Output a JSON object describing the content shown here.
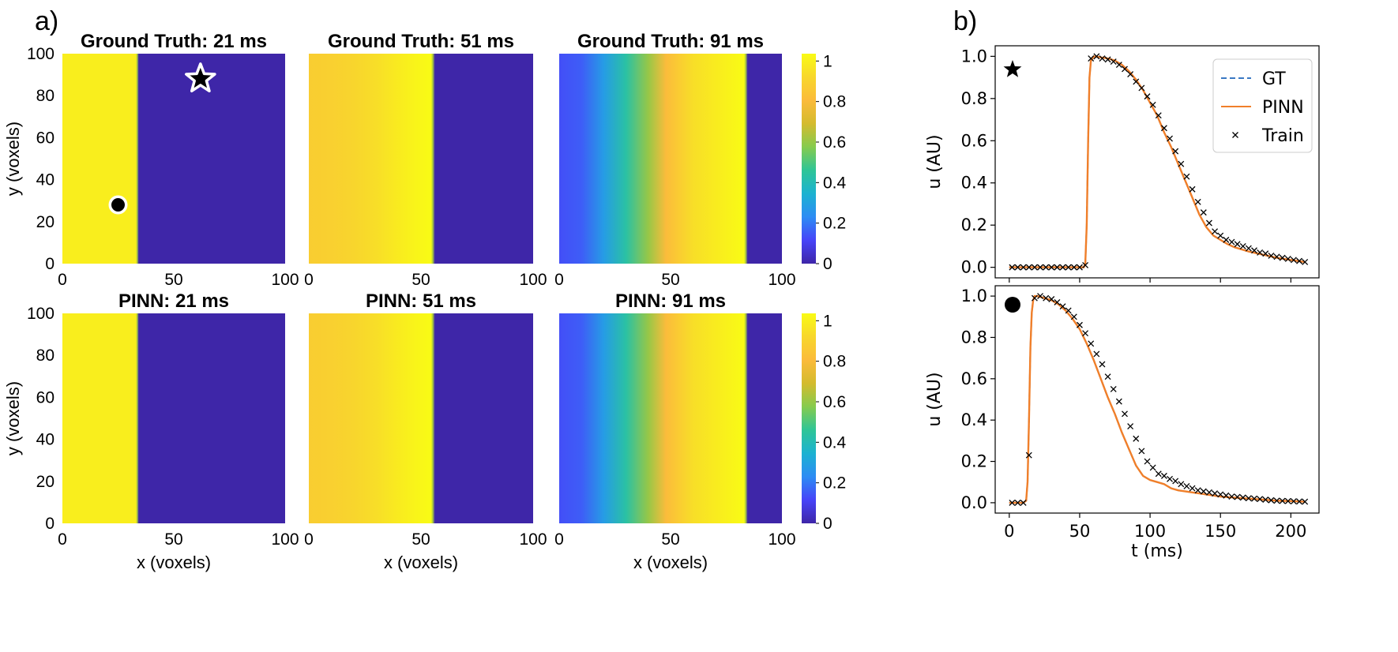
{
  "figure": {
    "panel_a": "a)",
    "panel_b": "b)"
  },
  "colormap": [
    "#3e26a8",
    "#4743f8",
    "#2d8cf4",
    "#1cb2d1",
    "#2ec597",
    "#86cb4e",
    "#d4bb2e",
    "#fbbb3b",
    "#f8d72c",
    "#f9fb15"
  ],
  "chart_data": [
    {
      "type": "heatmap",
      "name": "heatmap-gt-21",
      "title": "Ground Truth: 21 ms",
      "ylabel": "y (voxels)",
      "xlabel": "",
      "xlim": [
        0,
        100
      ],
      "ylim": [
        0,
        100
      ],
      "xticks": [
        "0",
        "50",
        "100"
      ],
      "yticks": [
        "0",
        "20",
        "40",
        "60",
        "80",
        "100"
      ],
      "profile_x": [
        0,
        33,
        33.6,
        34.3,
        100
      ],
      "profile_u": [
        0.96,
        0.96,
        0.6,
        0.0,
        0.0
      ],
      "markers": [
        {
          "symbol": "star",
          "x": 62,
          "y": 88
        },
        {
          "symbol": "circle",
          "x": 25,
          "y": 28
        }
      ]
    },
    {
      "type": "heatmap",
      "name": "heatmap-gt-51",
      "title": "Ground Truth: 51 ms",
      "xlabel": "",
      "xlim": [
        0,
        100
      ],
      "ylim": [
        0,
        100
      ],
      "xticks": [
        "0",
        "50",
        "100"
      ],
      "profile_x": [
        0,
        10,
        20,
        30,
        40,
        48,
        54.5,
        55.3,
        56.2,
        100
      ],
      "profile_u": [
        0.85,
        0.86,
        0.88,
        0.91,
        0.95,
        0.98,
        1.0,
        0.6,
        0.0,
        0.0
      ]
    },
    {
      "type": "heatmap",
      "name": "heatmap-gt-91",
      "title": "Ground Truth: 91 ms",
      "xlabel": "",
      "xlim": [
        0,
        100
      ],
      "ylim": [
        0,
        100
      ],
      "xticks": [
        "0",
        "50",
        "100"
      ],
      "profile_x": [
        0,
        10,
        20,
        30,
        40,
        48,
        60,
        70,
        83,
        83.8,
        84.6,
        100
      ],
      "profile_u": [
        0.13,
        0.15,
        0.27,
        0.42,
        0.58,
        0.78,
        0.91,
        0.95,
        1.0,
        0.6,
        0.0,
        0.0
      ]
    },
    {
      "type": "heatmap",
      "name": "heatmap-pinn-21",
      "title": "PINN: 21 ms",
      "ylabel": "y (voxels)",
      "xlabel": "x (voxels)",
      "xlim": [
        0,
        100
      ],
      "ylim": [
        0,
        100
      ],
      "xticks": [
        "0",
        "50",
        "100"
      ],
      "yticks": [
        "0",
        "20",
        "40",
        "60",
        "80",
        "100"
      ],
      "profile_x": [
        0,
        33,
        33.6,
        34.3,
        100
      ],
      "profile_u": [
        0.96,
        0.96,
        0.6,
        0.0,
        0.0
      ]
    },
    {
      "type": "heatmap",
      "name": "heatmap-pinn-51",
      "title": "PINN: 51 ms",
      "xlabel": "x (voxels)",
      "xlim": [
        0,
        100
      ],
      "ylim": [
        0,
        100
      ],
      "xticks": [
        "0",
        "50",
        "100"
      ],
      "profile_x": [
        0,
        10,
        20,
        30,
        40,
        48,
        54.5,
        55.3,
        56.2,
        100
      ],
      "profile_u": [
        0.85,
        0.86,
        0.88,
        0.91,
        0.95,
        0.98,
        1.0,
        0.6,
        0.0,
        0.0
      ]
    },
    {
      "type": "heatmap",
      "name": "heatmap-pinn-91",
      "title": "PINN: 91 ms",
      "xlabel": "x (voxels)",
      "xlim": [
        0,
        100
      ],
      "ylim": [
        0,
        100
      ],
      "xticks": [
        "0",
        "50",
        "100"
      ],
      "profile_x": [
        0,
        10,
        20,
        30,
        40,
        48,
        60,
        70,
        83,
        83.8,
        84.6,
        100
      ],
      "profile_u": [
        0.13,
        0.15,
        0.27,
        0.42,
        0.58,
        0.78,
        0.91,
        0.95,
        1.0,
        0.6,
        0.0,
        0.0
      ]
    },
    {
      "type": "colorbar",
      "name": "colorbar-top",
      "range": [
        0,
        1
      ],
      "ticks": [
        "0",
        "0.2",
        "0.4",
        "0.6",
        "0.8",
        "1"
      ]
    },
    {
      "type": "colorbar",
      "name": "colorbar-bottom",
      "range": [
        0,
        1
      ],
      "ticks": [
        "0",
        "0.2",
        "0.4",
        "0.6",
        "0.8",
        "1"
      ]
    },
    {
      "type": "line",
      "name": "trace-star",
      "marker_symbol": "star",
      "ylabel": "u (AU)",
      "xlabel": "",
      "xlim": [
        -10,
        220
      ],
      "ylim": [
        -0.05,
        1.05
      ],
      "xticks": [
        0,
        50,
        100,
        150,
        200
      ],
      "yticks": [
        "0.0",
        "0.2",
        "0.4",
        "0.6",
        "0.8",
        "1.0"
      ],
      "legend": [
        "GT",
        "PINN",
        "Train"
      ],
      "series": [
        {
          "name": "GT",
          "color": "#3a78c3",
          "style": "dashed",
          "x": [
            0,
            53,
            54,
            55,
            56,
            57,
            58,
            60,
            65,
            70,
            75,
            80,
            85,
            90,
            95,
            100,
            105,
            110,
            115,
            120,
            125,
            130,
            135,
            140,
            145,
            150,
            155,
            160,
            170,
            180,
            190,
            200,
            210
          ],
          "y": [
            0,
            0,
            0.02,
            0.2,
            0.6,
            0.9,
            0.98,
            1.0,
            0.995,
            0.99,
            0.98,
            0.96,
            0.93,
            0.89,
            0.84,
            0.78,
            0.72,
            0.64,
            0.57,
            0.49,
            0.41,
            0.33,
            0.25,
            0.19,
            0.15,
            0.13,
            0.11,
            0.095,
            0.075,
            0.06,
            0.045,
            0.035,
            0.025
          ]
        },
        {
          "name": "PINN",
          "color": "#f07f2a",
          "style": "solid",
          "x": [
            0,
            53,
            54,
            55,
            56,
            57,
            58,
            60,
            65,
            70,
            75,
            80,
            85,
            90,
            95,
            100,
            105,
            110,
            115,
            120,
            125,
            130,
            135,
            140,
            145,
            150,
            155,
            160,
            170,
            180,
            190,
            200,
            210
          ],
          "y": [
            0,
            0,
            0.02,
            0.2,
            0.6,
            0.9,
            0.98,
            1.0,
            0.995,
            0.99,
            0.98,
            0.96,
            0.93,
            0.89,
            0.84,
            0.78,
            0.72,
            0.64,
            0.57,
            0.49,
            0.41,
            0.33,
            0.25,
            0.19,
            0.15,
            0.13,
            0.11,
            0.095,
            0.075,
            0.06,
            0.045,
            0.035,
            0.025
          ]
        },
        {
          "name": "Train",
          "color": "#000000",
          "style": "x-marker",
          "x": [
            2,
            6,
            10,
            14,
            18,
            22,
            26,
            30,
            34,
            38,
            42,
            46,
            50,
            54,
            58,
            62,
            66,
            70,
            74,
            78,
            82,
            86,
            90,
            94,
            98,
            102,
            106,
            110,
            114,
            118,
            122,
            126,
            130,
            134,
            138,
            142,
            146,
            150,
            154,
            158,
            162,
            166,
            170,
            174,
            178,
            182,
            186,
            190,
            194,
            198,
            202,
            206,
            210
          ],
          "y": [
            0,
            0,
            0,
            0,
            0,
            0,
            0,
            0,
            0,
            0,
            0,
            0,
            0,
            0.01,
            0.99,
            1.0,
            0.99,
            0.985,
            0.975,
            0.96,
            0.94,
            0.915,
            0.88,
            0.85,
            0.81,
            0.77,
            0.72,
            0.66,
            0.61,
            0.55,
            0.49,
            0.43,
            0.37,
            0.31,
            0.26,
            0.21,
            0.17,
            0.15,
            0.13,
            0.12,
            0.11,
            0.1,
            0.09,
            0.08,
            0.07,
            0.065,
            0.055,
            0.05,
            0.045,
            0.04,
            0.035,
            0.03,
            0.025
          ]
        }
      ]
    },
    {
      "type": "line",
      "name": "trace-circle",
      "marker_symbol": "circle",
      "ylabel": "u (AU)",
      "xlabel": "t (ms)",
      "xlim": [
        -10,
        220
      ],
      "ylim": [
        -0.05,
        1.05
      ],
      "xticks": [
        0,
        50,
        100,
        150,
        200
      ],
      "yticks": [
        "0.0",
        "0.2",
        "0.4",
        "0.6",
        "0.8",
        "1.0"
      ],
      "series": [
        {
          "name": "GT",
          "color": "#3a78c3",
          "style": "dashed",
          "x": [
            0,
            10,
            12,
            13,
            14,
            15,
            16,
            17,
            18,
            20,
            25,
            30,
            35,
            40,
            45,
            50,
            55,
            60,
            65,
            70,
            75,
            80,
            85,
            90,
            95,
            100,
            105,
            110,
            115,
            120,
            130,
            140,
            150,
            160,
            170,
            180,
            190,
            200,
            210
          ],
          "y": [
            0,
            0,
            0.01,
            0.1,
            0.4,
            0.75,
            0.92,
            0.98,
            1.0,
            1.0,
            0.99,
            0.98,
            0.96,
            0.93,
            0.89,
            0.84,
            0.77,
            0.69,
            0.6,
            0.51,
            0.43,
            0.34,
            0.26,
            0.18,
            0.13,
            0.11,
            0.1,
            0.09,
            0.07,
            0.06,
            0.05,
            0.04,
            0.03,
            0.025,
            0.02,
            0.015,
            0.01,
            0.008,
            0.005
          ]
        },
        {
          "name": "PINN",
          "color": "#f07f2a",
          "style": "solid",
          "x": [
            0,
            10,
            12,
            13,
            14,
            15,
            16,
            17,
            18,
            20,
            25,
            30,
            35,
            40,
            45,
            50,
            55,
            60,
            65,
            70,
            75,
            80,
            85,
            90,
            95,
            100,
            105,
            110,
            115,
            120,
            130,
            140,
            150,
            160,
            170,
            180,
            190,
            200,
            210
          ],
          "y": [
            0,
            0,
            0.01,
            0.1,
            0.4,
            0.75,
            0.92,
            0.98,
            1.0,
            1.0,
            0.99,
            0.98,
            0.96,
            0.93,
            0.89,
            0.84,
            0.77,
            0.69,
            0.6,
            0.51,
            0.43,
            0.34,
            0.26,
            0.18,
            0.13,
            0.11,
            0.1,
            0.09,
            0.07,
            0.06,
            0.05,
            0.04,
            0.03,
            0.025,
            0.02,
            0.015,
            0.01,
            0.008,
            0.005
          ]
        },
        {
          "name": "Train",
          "color": "#000000",
          "style": "x-marker",
          "x": [
            2,
            6,
            10,
            14,
            18,
            22,
            26,
            30,
            34,
            38,
            42,
            46,
            50,
            54,
            58,
            62,
            66,
            70,
            74,
            78,
            82,
            86,
            90,
            94,
            98,
            102,
            106,
            110,
            114,
            118,
            122,
            126,
            130,
            134,
            138,
            142,
            146,
            150,
            154,
            158,
            162,
            166,
            170,
            174,
            178,
            182,
            186,
            190,
            194,
            198,
            202,
            206,
            210
          ],
          "y": [
            0,
            0,
            0,
            0.23,
            0.99,
            1.0,
            0.99,
            0.985,
            0.97,
            0.95,
            0.93,
            0.9,
            0.86,
            0.82,
            0.77,
            0.72,
            0.67,
            0.61,
            0.55,
            0.49,
            0.43,
            0.37,
            0.31,
            0.25,
            0.2,
            0.17,
            0.14,
            0.13,
            0.115,
            0.105,
            0.09,
            0.08,
            0.07,
            0.06,
            0.055,
            0.05,
            0.045,
            0.04,
            0.035,
            0.03,
            0.028,
            0.025,
            0.022,
            0.02,
            0.018,
            0.015,
            0.012,
            0.01,
            0.009,
            0.008,
            0.007,
            0.006,
            0.005
          ]
        }
      ]
    }
  ]
}
